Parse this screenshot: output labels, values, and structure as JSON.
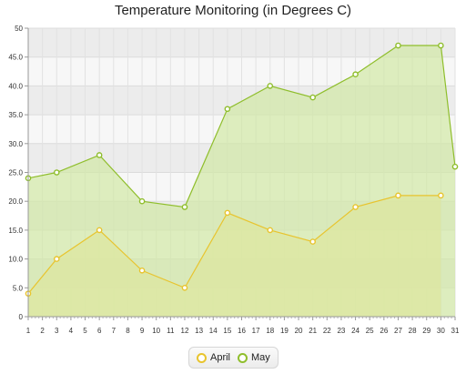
{
  "chart_data": {
    "type": "area",
    "title": "Temperature Monitoring (in Degrees C)",
    "xlabel": "",
    "ylabel": "",
    "xlim": [
      1,
      31
    ],
    "ylim": [
      0,
      50
    ],
    "x_ticks": [
      1,
      2,
      3,
      4,
      5,
      6,
      7,
      8,
      9,
      10,
      11,
      12,
      13,
      14,
      15,
      16,
      17,
      18,
      19,
      20,
      21,
      22,
      23,
      24,
      25,
      26,
      27,
      28,
      29,
      30,
      31
    ],
    "y_ticks": [
      0,
      5.0,
      10.0,
      15.0,
      20.0,
      25.0,
      30.0,
      35.0,
      40.0,
      45.0,
      50
    ],
    "y_tick_labels": [
      "0",
      "5.0",
      "10.0",
      "15.0",
      "20.0",
      "25.0",
      "30.0",
      "35.0",
      "40.0",
      "45.0",
      "50"
    ],
    "grid": true,
    "legend_position": "bottom-center",
    "series": [
      {
        "name": "April",
        "color": "#e8c42e",
        "fill": "#f5e4a0",
        "x": [
          1,
          3,
          6,
          9,
          12,
          15,
          18,
          21,
          24,
          27,
          30
        ],
        "y": [
          4,
          10,
          15,
          8,
          5,
          18,
          15,
          13,
          19,
          21,
          21
        ]
      },
      {
        "name": "May",
        "color": "#8fbe2c",
        "fill": "#cfe8a0",
        "x": [
          1,
          3,
          6,
          9,
          12,
          15,
          18,
          21,
          24,
          27,
          30,
          31
        ],
        "y": [
          24,
          25,
          28,
          20,
          19,
          36,
          40,
          38,
          42,
          47,
          47,
          26
        ]
      }
    ]
  }
}
